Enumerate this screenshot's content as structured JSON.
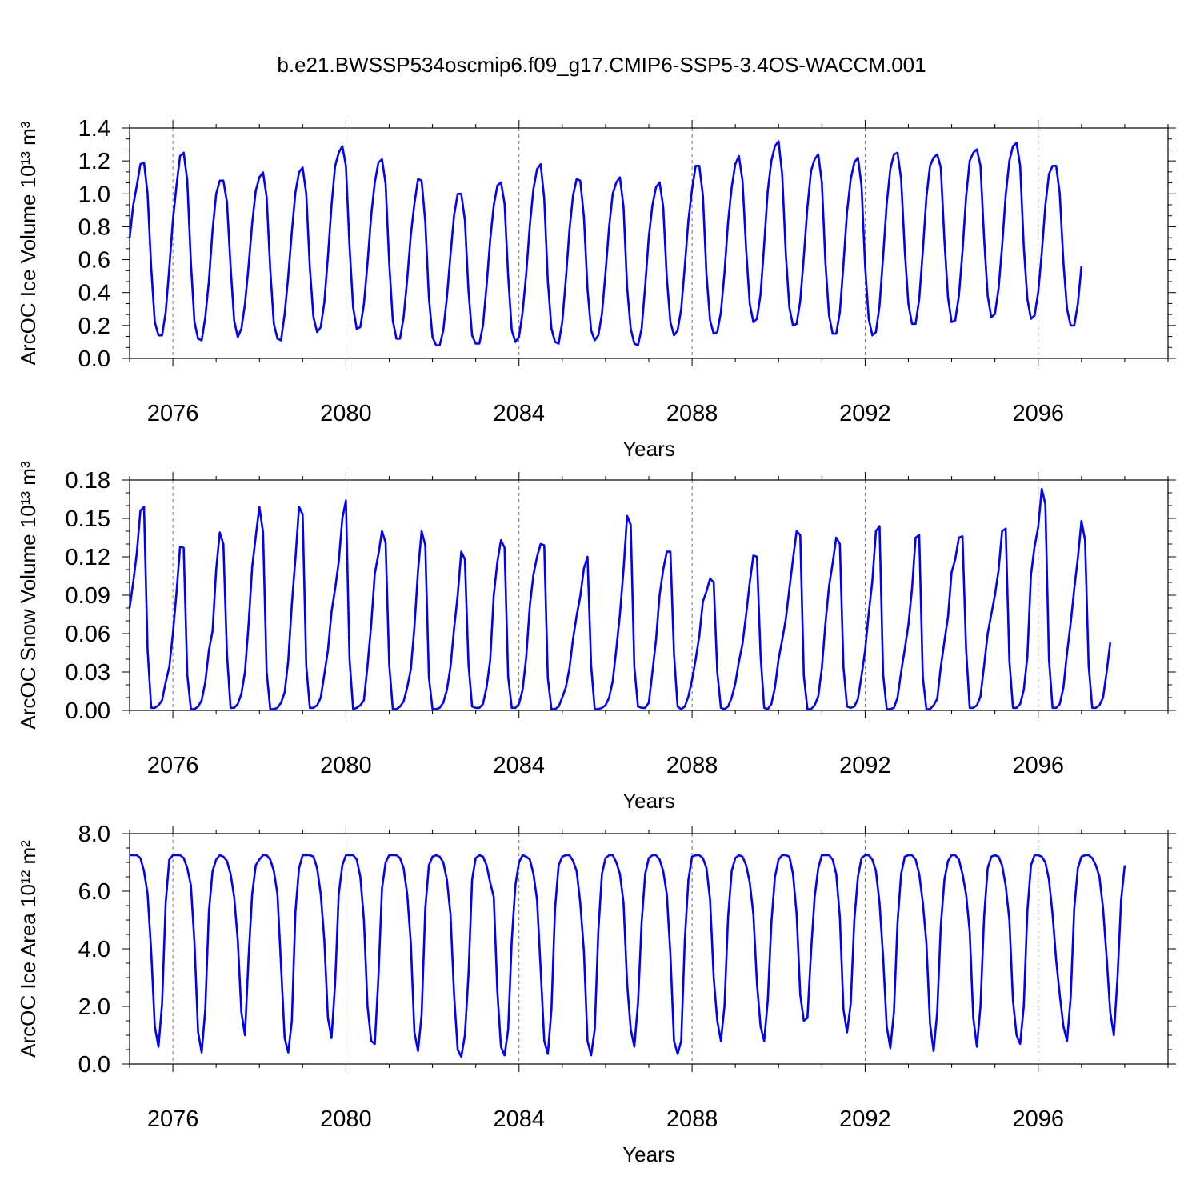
{
  "figure_title": "b.e21.BWSSP534oscmip6.f09_g17.CMIP6-SSP5-3.4OS-WACCM.001",
  "colors": {
    "line": "#0000ff",
    "axes": "#000000",
    "background": "#ffffff"
  },
  "chart_data": [
    {
      "type": "line",
      "title": "",
      "xlabel": "Years",
      "ylabel": "ArcOC Ice Volume 10¹³ m³",
      "xlim": [
        2075,
        2099
      ],
      "ylim": [
        0,
        1.4
      ],
      "x_ticks": [
        2076,
        2080,
        2084,
        2088,
        2092,
        2096
      ],
      "x_tick_labels": [
        "2076",
        "2080",
        "2084",
        "2088",
        "2092",
        "2096"
      ],
      "y_ticks": [
        0,
        0.2,
        0.4,
        0.6,
        0.8,
        1.0,
        1.2,
        1.4
      ],
      "y_tick_labels": [
        "0.0",
        "0.2",
        "0.4",
        "0.6",
        "0.8",
        "1.0",
        "1.2",
        "1.4"
      ],
      "vertical_reference_lines": [
        2076,
        2080,
        2084,
        2088,
        2092,
        2096
      ],
      "x_start": 2075.0,
      "x_step": 0.08333,
      "series": [
        {
          "values": [
            0.73,
            0.93,
            1.05,
            1.18,
            1.19,
            1.0,
            0.55,
            0.22,
            0.14,
            0.14,
            0.28,
            0.55,
            0.84,
            1.05,
            1.23,
            1.25,
            1.08,
            0.58,
            0.22,
            0.12,
            0.11,
            0.25,
            0.47,
            0.78,
            1.0,
            1.08,
            1.08,
            0.95,
            0.56,
            0.23,
            0.13,
            0.18,
            0.33,
            0.56,
            0.82,
            1.02,
            1.1,
            1.13,
            0.98,
            0.54,
            0.21,
            0.12,
            0.11,
            0.27,
            0.5,
            0.77,
            1.01,
            1.13,
            1.16,
            1.0,
            0.55,
            0.25,
            0.16,
            0.19,
            0.34,
            0.62,
            0.93,
            1.17,
            1.25,
            1.29,
            1.17,
            0.68,
            0.31,
            0.18,
            0.19,
            0.33,
            0.58,
            0.87,
            1.07,
            1.19,
            1.21,
            1.06,
            0.58,
            0.23,
            0.12,
            0.12,
            0.25,
            0.48,
            0.75,
            0.94,
            1.09,
            1.08,
            0.83,
            0.37,
            0.13,
            0.08,
            0.08,
            0.17,
            0.37,
            0.63,
            0.87,
            1.0,
            1.0,
            0.84,
            0.41,
            0.14,
            0.09,
            0.09,
            0.2,
            0.44,
            0.72,
            0.93,
            1.05,
            1.07,
            0.94,
            0.5,
            0.17,
            0.1,
            0.13,
            0.28,
            0.51,
            0.81,
            1.03,
            1.15,
            1.18,
            0.97,
            0.47,
            0.18,
            0.1,
            0.09,
            0.22,
            0.48,
            0.78,
            0.99,
            1.09,
            1.08,
            0.86,
            0.42,
            0.17,
            0.11,
            0.14,
            0.27,
            0.52,
            0.8,
            1.0,
            1.07,
            1.1,
            0.92,
            0.43,
            0.18,
            0.09,
            0.08,
            0.18,
            0.44,
            0.74,
            0.93,
            1.04,
            1.07,
            0.92,
            0.49,
            0.22,
            0.14,
            0.17,
            0.3,
            0.56,
            0.84,
            1.03,
            1.17,
            1.17,
            0.99,
            0.51,
            0.23,
            0.15,
            0.16,
            0.28,
            0.52,
            0.83,
            1.04,
            1.18,
            1.23,
            1.08,
            0.66,
            0.33,
            0.22,
            0.24,
            0.39,
            0.69,
            1.02,
            1.2,
            1.29,
            1.32,
            1.12,
            0.64,
            0.31,
            0.2,
            0.21,
            0.35,
            0.62,
            0.92,
            1.14,
            1.21,
            1.24,
            1.07,
            0.58,
            0.26,
            0.15,
            0.15,
            0.28,
            0.57,
            0.89,
            1.09,
            1.19,
            1.22,
            1.05,
            0.56,
            0.24,
            0.14,
            0.16,
            0.32,
            0.62,
            0.94,
            1.15,
            1.24,
            1.25,
            1.09,
            0.65,
            0.33,
            0.21,
            0.21,
            0.36,
            0.65,
            0.98,
            1.17,
            1.22,
            1.24,
            1.16,
            0.72,
            0.37,
            0.22,
            0.23,
            0.38,
            0.65,
            0.98,
            1.2,
            1.25,
            1.27,
            1.17,
            0.73,
            0.38,
            0.25,
            0.27,
            0.42,
            0.68,
            0.99,
            1.2,
            1.29,
            1.31,
            1.17,
            0.68,
            0.36,
            0.24,
            0.26,
            0.4,
            0.64,
            0.93,
            1.12,
            1.17,
            1.17,
            1.0,
            0.58,
            0.3,
            0.2,
            0.2,
            0.33,
            0.56
          ]
        }
      ]
    },
    {
      "type": "line",
      "title": "",
      "xlabel": "Years",
      "ylabel": "ArcOC Snow Volume 10¹³ m³",
      "xlim": [
        2075,
        2099
      ],
      "ylim": [
        0,
        0.18
      ],
      "x_ticks": [
        2076,
        2080,
        2084,
        2088,
        2092,
        2096
      ],
      "x_tick_labels": [
        "2076",
        "2080",
        "2084",
        "2088",
        "2092",
        "2096"
      ],
      "y_ticks": [
        0,
        0.03,
        0.06,
        0.09,
        0.12,
        0.15,
        0.18
      ],
      "y_tick_labels": [
        "0.00",
        "0.03",
        "0.06",
        "0.09",
        "0.12",
        "0.15",
        "0.18"
      ],
      "vertical_reference_lines": [
        2076,
        2080,
        2084,
        2088,
        2092,
        2096
      ],
      "x_start": 2075.0,
      "x_step": 0.08333,
      "series": [
        {
          "values": [
            0.08,
            0.1,
            0.123,
            0.156,
            0.159,
            0.047,
            0.002,
            0.002,
            0.004,
            0.008,
            0.022,
            0.034,
            0.06,
            0.092,
            0.128,
            0.127,
            0.028,
            0.001,
            0.001,
            0.003,
            0.008,
            0.022,
            0.047,
            0.062,
            0.11,
            0.139,
            0.13,
            0.044,
            0.002,
            0.002,
            0.005,
            0.013,
            0.03,
            0.067,
            0.112,
            0.136,
            0.159,
            0.139,
            0.03,
            0.001,
            0.001,
            0.002,
            0.006,
            0.014,
            0.039,
            0.083,
            0.119,
            0.159,
            0.153,
            0.035,
            0.002,
            0.002,
            0.004,
            0.01,
            0.028,
            0.047,
            0.077,
            0.095,
            0.116,
            0.15,
            0.164,
            0.04,
            0.001,
            0.002,
            0.004,
            0.008,
            0.035,
            0.067,
            0.107,
            0.122,
            0.14,
            0.131,
            0.036,
            0.001,
            0.001,
            0.003,
            0.007,
            0.018,
            0.032,
            0.065,
            0.109,
            0.14,
            0.129,
            0.026,
            0.001,
            0.001,
            0.002,
            0.006,
            0.016,
            0.034,
            0.064,
            0.09,
            0.124,
            0.118,
            0.036,
            0.003,
            0.002,
            0.002,
            0.005,
            0.018,
            0.039,
            0.09,
            0.116,
            0.133,
            0.127,
            0.026,
            0.002,
            0.002,
            0.005,
            0.016,
            0.041,
            0.082,
            0.106,
            0.12,
            0.13,
            0.129,
            0.025,
            0.001,
            0.001,
            0.003,
            0.01,
            0.018,
            0.033,
            0.056,
            0.074,
            0.089,
            0.111,
            0.12,
            0.035,
            0.001,
            0.001,
            0.002,
            0.004,
            0.01,
            0.023,
            0.048,
            0.075,
            0.11,
            0.152,
            0.145,
            0.034,
            0.003,
            0.002,
            0.002,
            0.006,
            0.03,
            0.055,
            0.09,
            0.11,
            0.124,
            0.124,
            0.044,
            0.003,
            0.001,
            0.003,
            0.011,
            0.024,
            0.04,
            0.058,
            0.085,
            0.093,
            0.103,
            0.1,
            0.03,
            0.002,
            0.001,
            0.003,
            0.01,
            0.021,
            0.038,
            0.052,
            0.075,
            0.1,
            0.121,
            0.12,
            0.043,
            0.002,
            0.001,
            0.005,
            0.018,
            0.04,
            0.055,
            0.071,
            0.095,
            0.118,
            0.14,
            0.137,
            0.027,
            0.001,
            0.001,
            0.004,
            0.011,
            0.033,
            0.068,
            0.097,
            0.115,
            0.135,
            0.13,
            0.034,
            0.003,
            0.002,
            0.003,
            0.009,
            0.027,
            0.047,
            0.076,
            0.101,
            0.14,
            0.144,
            0.028,
            0.001,
            0.001,
            0.002,
            0.01,
            0.03,
            0.048,
            0.067,
            0.095,
            0.135,
            0.137,
            0.026,
            0.001,
            0.001,
            0.004,
            0.009,
            0.034,
            0.054,
            0.073,
            0.108,
            0.118,
            0.135,
            0.136,
            0.048,
            0.002,
            0.002,
            0.004,
            0.011,
            0.035,
            0.06,
            0.075,
            0.09,
            0.109,
            0.14,
            0.142,
            0.039,
            0.002,
            0.002,
            0.005,
            0.016,
            0.042,
            0.106,
            0.128,
            0.143,
            0.173,
            0.161,
            0.04,
            0.002,
            0.002,
            0.005,
            0.018,
            0.045,
            0.068,
            0.095,
            0.119,
            0.148,
            0.133,
            0.035,
            0.002,
            0.002,
            0.004,
            0.01,
            0.03,
            0.053
          ]
        }
      ]
    },
    {
      "type": "line",
      "title": "",
      "xlabel": "Years",
      "ylabel": "ArcOC Ice Area 10¹² m²",
      "xlim": [
        2075,
        2099
      ],
      "ylim": [
        0,
        8
      ],
      "x_ticks": [
        2076,
        2080,
        2084,
        2088,
        2092,
        2096
      ],
      "x_tick_labels": [
        "2076",
        "2080",
        "2084",
        "2088",
        "2092",
        "2096"
      ],
      "y_ticks": [
        0,
        2,
        4,
        6,
        8
      ],
      "y_tick_labels": [
        "0.0",
        "2.0",
        "4.0",
        "6.0",
        "8.0"
      ],
      "vertical_reference_lines": [
        2076,
        2080,
        2084,
        2088,
        2092,
        2096
      ],
      "x_start": 2075.0,
      "x_step": 0.08333,
      "series": [
        {
          "values": [
            7.25,
            7.25,
            7.25,
            7.15,
            6.7,
            5.9,
            3.9,
            1.3,
            0.6,
            2.1,
            5.6,
            7.1,
            7.25,
            7.25,
            7.25,
            7.15,
            6.8,
            6.2,
            4.2,
            1.1,
            0.4,
            1.9,
            5.3,
            6.7,
            7.1,
            7.25,
            7.2,
            7.05,
            6.6,
            5.8,
            4.3,
            1.8,
            1.0,
            3.7,
            5.9,
            6.9,
            7.1,
            7.25,
            7.25,
            7.1,
            6.7,
            5.9,
            3.4,
            0.9,
            0.4,
            1.5,
            5.3,
            6.8,
            7.25,
            7.25,
            7.25,
            7.2,
            6.8,
            5.9,
            4.3,
            1.6,
            0.9,
            2.8,
            5.9,
            6.9,
            7.25,
            7.25,
            7.25,
            7.1,
            6.5,
            5.0,
            2.0,
            0.8,
            0.7,
            3.0,
            6.1,
            7.0,
            7.25,
            7.25,
            7.25,
            7.15,
            6.8,
            5.9,
            4.2,
            1.1,
            0.45,
            1.7,
            5.4,
            6.9,
            7.2,
            7.25,
            7.2,
            7.0,
            6.4,
            5.2,
            2.4,
            0.5,
            0.25,
            1.0,
            3.1,
            6.4,
            7.15,
            7.25,
            7.2,
            6.9,
            6.3,
            5.8,
            2.5,
            0.6,
            0.3,
            1.2,
            4.3,
            6.2,
            7.0,
            7.25,
            7.2,
            7.1,
            6.6,
            5.7,
            3.3,
            0.8,
            0.35,
            1.9,
            5.4,
            6.9,
            7.2,
            7.25,
            7.25,
            7.05,
            6.7,
            5.6,
            3.9,
            0.8,
            0.3,
            1.2,
            4.6,
            6.6,
            7.15,
            7.25,
            7.25,
            7.0,
            6.6,
            5.6,
            2.8,
            1.2,
            0.6,
            2.1,
            4.9,
            6.6,
            7.15,
            7.25,
            7.25,
            7.1,
            6.7,
            5.9,
            3.8,
            0.8,
            0.35,
            0.8,
            4.3,
            6.4,
            7.2,
            7.25,
            7.25,
            7.15,
            6.8,
            5.7,
            3.0,
            1.5,
            0.8,
            2.0,
            5.1,
            6.7,
            7.15,
            7.25,
            7.2,
            6.9,
            6.3,
            5.2,
            2.8,
            1.3,
            0.8,
            2.2,
            4.9,
            6.5,
            7.1,
            7.25,
            7.25,
            7.2,
            6.6,
            5.2,
            2.4,
            1.5,
            1.6,
            3.9,
            5.8,
            6.8,
            7.25,
            7.25,
            7.25,
            7.1,
            6.6,
            5.1,
            1.9,
            1.1,
            2.1,
            5.0,
            6.5,
            7.15,
            7.25,
            7.25,
            7.1,
            6.7,
            5.6,
            3.7,
            1.3,
            0.55,
            1.8,
            4.9,
            6.6,
            7.2,
            7.25,
            7.25,
            7.1,
            6.6,
            5.6,
            4.2,
            1.4,
            0.45,
            1.8,
            4.8,
            6.4,
            7.05,
            7.25,
            7.25,
            7.1,
            6.6,
            5.9,
            4.6,
            1.6,
            0.6,
            2.0,
            5.1,
            6.8,
            7.2,
            7.25,
            7.2,
            6.9,
            6.2,
            5.0,
            2.2,
            1.0,
            0.7,
            2.0,
            5.3,
            6.9,
            7.25,
            7.25,
            7.2,
            7.0,
            6.4,
            5.2,
            3.6,
            2.4,
            1.3,
            0.8,
            2.3,
            5.4,
            6.8,
            7.2,
            7.25,
            7.25,
            7.15,
            6.9,
            6.5,
            5.4,
            3.7,
            1.8,
            1.0,
            3.0,
            5.7,
            6.9
          ]
        }
      ]
    }
  ]
}
